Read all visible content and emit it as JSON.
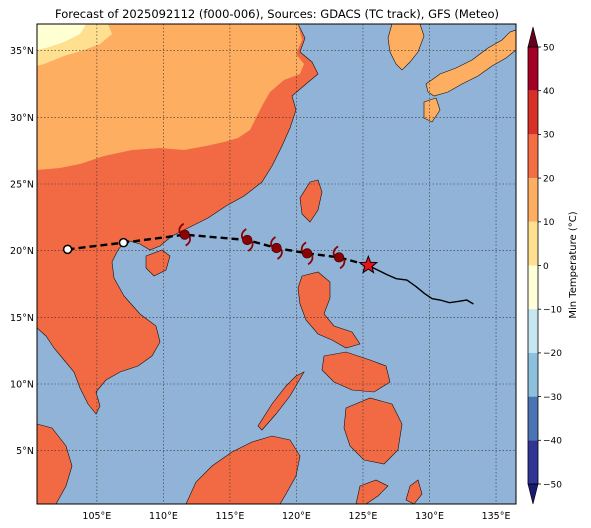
{
  "title": "Forecast of 2025092112 (f000-006), Sources: GDACS (TC track), GFS (Meteo)",
  "map": {
    "lon_range": [
      100.5,
      136.5
    ],
    "lat_range": [
      1.0,
      37.0
    ],
    "lon_ticks": [
      {
        "value": 105,
        "label": "105°E"
      },
      {
        "value": 110,
        "label": "110°E"
      },
      {
        "value": 115,
        "label": "115°E"
      },
      {
        "value": 120,
        "label": "120°E"
      },
      {
        "value": 125,
        "label": "125°E"
      },
      {
        "value": 130,
        "label": "130°E"
      },
      {
        "value": 135,
        "label": "135°E"
      }
    ],
    "lat_ticks": [
      {
        "value": 5,
        "label": "5°N"
      },
      {
        "value": 10,
        "label": "10°N"
      },
      {
        "value": 15,
        "label": "15°N"
      },
      {
        "value": 20,
        "label": "20°N"
      },
      {
        "value": 25,
        "label": "25°N"
      },
      {
        "value": 30,
        "label": "30°N"
      },
      {
        "value": 35,
        "label": "35°N"
      }
    ],
    "grid": true,
    "colors": {
      "sea": "#91b3d7",
      "land_warm": "#f16a43",
      "land_mild": "#fdae61",
      "land_cool": "#fee090",
      "land_cold": "#ffffd4",
      "coast": "#000000"
    }
  },
  "track": {
    "forecast_points": [
      {
        "lon": 102.8,
        "lat": 20.1,
        "marker": "open-circle"
      },
      {
        "lon": 107.0,
        "lat": 20.6,
        "marker": "open-circle"
      },
      {
        "lon": 111.6,
        "lat": 21.2,
        "marker": "typhoon"
      },
      {
        "lon": 116.3,
        "lat": 20.8,
        "marker": "typhoon"
      },
      {
        "lon": 118.5,
        "lat": 20.2,
        "marker": "typhoon"
      },
      {
        "lon": 120.8,
        "lat": 19.8,
        "marker": "typhoon"
      },
      {
        "lon": 123.2,
        "lat": 19.5,
        "marker": "typhoon"
      }
    ],
    "current_position": {
      "lon": 125.4,
      "lat": 18.9,
      "marker": "star"
    },
    "past_track": [
      [
        125.4,
        18.9
      ],
      [
        126.0,
        18.6
      ],
      [
        126.8,
        18.2
      ],
      [
        127.5,
        17.9
      ],
      [
        128.3,
        17.8
      ],
      [
        129.0,
        17.3
      ],
      [
        129.6,
        16.8
      ],
      [
        130.2,
        16.4
      ],
      [
        130.8,
        16.3
      ],
      [
        131.5,
        16.1
      ],
      [
        132.2,
        16.2
      ],
      [
        132.8,
        16.3
      ],
      [
        133.3,
        16.0
      ]
    ],
    "colors": {
      "forecast": "#000000",
      "marker": "#8b0000",
      "star": "#e8141c"
    }
  },
  "colorbar": {
    "label": "Min Temperature (°C)",
    "min": -50,
    "max": 50,
    "ticks": [
      {
        "value": 50,
        "label": "50"
      },
      {
        "value": 40,
        "label": "40"
      },
      {
        "value": 30,
        "label": "30"
      },
      {
        "value": 20,
        "label": "20"
      },
      {
        "value": 10,
        "label": "10"
      },
      {
        "value": 0,
        "label": "0"
      },
      {
        "value": -10,
        "label": "−10"
      },
      {
        "value": -20,
        "label": "−20"
      },
      {
        "value": -30,
        "label": "−30"
      },
      {
        "value": -40,
        "label": "−40"
      },
      {
        "value": -50,
        "label": "−50"
      }
    ],
    "bands": [
      {
        "from": 40,
        "to": 50,
        "color": "#a50026"
      },
      {
        "from": 30,
        "to": 40,
        "color": "#d73027"
      },
      {
        "from": 20,
        "to": 30,
        "color": "#f46d43"
      },
      {
        "from": 10,
        "to": 20,
        "color": "#fdae61"
      },
      {
        "from": 0,
        "to": 10,
        "color": "#fee090"
      },
      {
        "from": -10,
        "to": 0,
        "color": "#ffffd9"
      },
      {
        "from": -20,
        "to": -10,
        "color": "#c6e7f1"
      },
      {
        "from": -30,
        "to": -20,
        "color": "#8cc0dd"
      },
      {
        "from": -40,
        "to": -30,
        "color": "#4a74b4"
      },
      {
        "from": -50,
        "to": -40,
        "color": "#313695"
      }
    ],
    "extend_top_color": "#67001f",
    "extend_bottom_color": "#1a1a6e"
  }
}
